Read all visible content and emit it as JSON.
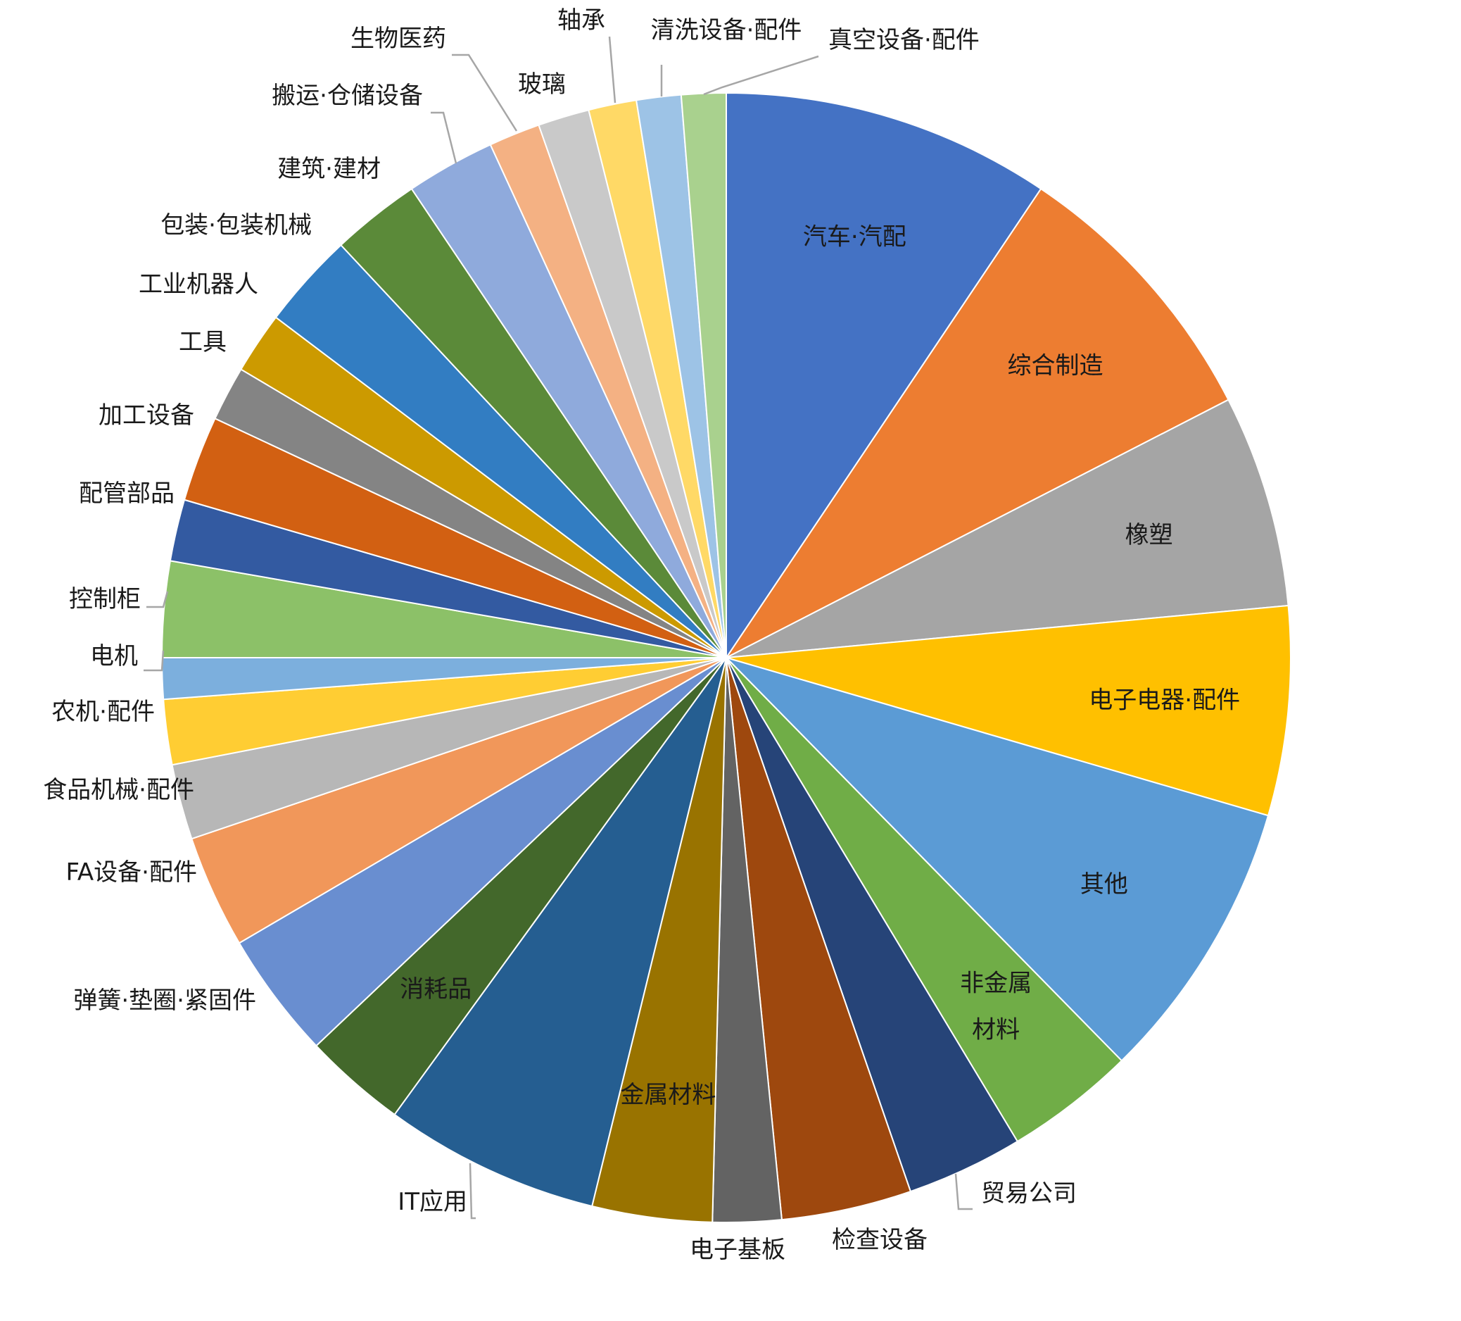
{
  "chart_data": {
    "type": "pie",
    "title": "",
    "start_angle_deg": 0,
    "direction": "clockwise",
    "slices": [
      {
        "label": "汽车·汽配",
        "value": 9.6,
        "color": "#4472C4",
        "label_pos": "inside"
      },
      {
        "label": "综合制造",
        "value": 8.2,
        "color": "#ED7D31",
        "label_pos": "inside"
      },
      {
        "label": "橡塑",
        "value": 6.2,
        "color": "#A5A5A5",
        "label_pos": "inside"
      },
      {
        "label": "电子电器·配件",
        "value": 6.1,
        "color": "#FFC000",
        "label_pos": "inside"
      },
      {
        "label": "其他",
        "value": 8.3,
        "color": "#5B9BD5",
        "label_pos": "inside"
      },
      {
        "label": "非金属\n材料",
        "value": 3.8,
        "color": "#70AD47",
        "label_pos": "inside"
      },
      {
        "label": "贸易公司",
        "value": 3.4,
        "color": "#264478",
        "label_pos": "outside"
      },
      {
        "label": "检查设备",
        "value": 3.8,
        "color": "#9E480E",
        "label_pos": "outside"
      },
      {
        "label": "电子基板",
        "value": 2.0,
        "color": "#636363",
        "label_pos": "outside"
      },
      {
        "label": "金属材料",
        "value": 3.5,
        "color": "#997300",
        "label_pos": "inside"
      },
      {
        "label": "IT应用",
        "value": 6.3,
        "color": "#255E91",
        "label_pos": "outside"
      },
      {
        "label": "消耗品",
        "value": 3.0,
        "color": "#43682B",
        "label_pos": "inside"
      },
      {
        "label": "弹簧·垫圈·紧固件",
        "value": 3.7,
        "color": "#698ED0",
        "label_pos": "outside"
      },
      {
        "label": "FA设备·配件",
        "value": 3.3,
        "color": "#F1975A",
        "label_pos": "outside"
      },
      {
        "label": "食品机械·配件",
        "value": 2.2,
        "color": "#B7B7B7",
        "label_pos": "outside"
      },
      {
        "label": "农机·配件",
        "value": 1.9,
        "color": "#FFCD33",
        "label_pos": "outside"
      },
      {
        "label": "电机",
        "value": 1.2,
        "color": "#7CAFDD",
        "label_pos": "outside"
      },
      {
        "label": "控制柜",
        "value": 2.8,
        "color": "#8CC168",
        "label_pos": "outside"
      },
      {
        "label": "配管部品",
        "value": 1.8,
        "color": "#335AA1",
        "label_pos": "outside"
      },
      {
        "label": "加工设备",
        "value": 2.5,
        "color": "#D26012",
        "label_pos": "outside"
      },
      {
        "label": "工具",
        "value": 1.6,
        "color": "#848484",
        "label_pos": "outside"
      },
      {
        "label": "工业机器人",
        "value": 1.8,
        "color": "#CC9A00",
        "label_pos": "outside"
      },
      {
        "label": "包装·包装机械",
        "value": 2.8,
        "color": "#327DC2",
        "label_pos": "outside"
      },
      {
        "label": "建筑·建材",
        "value": 2.6,
        "color": "#5B8A39",
        "label_pos": "outside"
      },
      {
        "label": "搬运·仓储设备",
        "value": 2.6,
        "color": "#8FAADC",
        "label_pos": "outside"
      },
      {
        "label": "生物医药",
        "value": 1.5,
        "color": "#F4B183",
        "label_pos": "outside"
      },
      {
        "label": "玻璃",
        "value": 1.5,
        "color": "#C9C9C9",
        "label_pos": "outside"
      },
      {
        "label": "轴承",
        "value": 1.4,
        "color": "#FFD966",
        "label_pos": "outside"
      },
      {
        "label": "清洗设备·配件",
        "value": 1.3,
        "color": "#9DC3E6",
        "label_pos": "outside"
      },
      {
        "label": "真空设备·配件",
        "value": 1.3,
        "color": "#A9D18E",
        "label_pos": "outside"
      }
    ]
  }
}
